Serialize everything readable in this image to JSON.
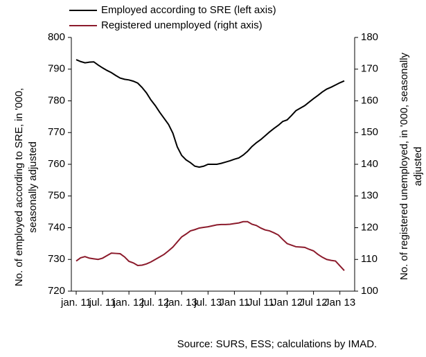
{
  "chart_data": {
    "type": "line",
    "categories": [
      "jan. 11",
      null,
      null,
      null,
      null,
      null,
      "jul. 11",
      null,
      null,
      null,
      null,
      null,
      "jan. 12",
      null,
      null,
      null,
      null,
      null,
      "jul. 12",
      null,
      null,
      null,
      null,
      null,
      "jan. 13",
      null,
      null,
      null,
      null,
      null,
      "jul. 13",
      null,
      null,
      null,
      null,
      null,
      "Jan 11",
      null,
      null,
      null,
      null,
      null,
      "Jul 11",
      null,
      null,
      null,
      null,
      null,
      "Jan 12",
      null,
      null,
      null,
      null,
      null,
      "Jul 12",
      null,
      null,
      null,
      null,
      null,
      "Jan 13",
      null
    ],
    "series": [
      {
        "name": "Employed according to SRE (left axis)",
        "color": "#000000",
        "axis": "y",
        "values": [
          793,
          792.4,
          792,
          792.2,
          792.3,
          791.3,
          790.4,
          789.6,
          788.9,
          788,
          787.2,
          786.8,
          786.6,
          786.2,
          785.6,
          784.2,
          782.5,
          780.3,
          778.5,
          776.4,
          774.5,
          772.6,
          769.8,
          765.5,
          762.8,
          761.4,
          760.5,
          759.4,
          759.1,
          759.4,
          760,
          760,
          760,
          760.3,
          760.7,
          761.1,
          761.6,
          762,
          762.9,
          764.1,
          765.6,
          766.8,
          767.8,
          769,
          770.2,
          771.3,
          772.3,
          773.5,
          774,
          775.4,
          776.9,
          777.7,
          778.5,
          779.6,
          780.7,
          781.7,
          782.8,
          783.7,
          784.3,
          785,
          785.7,
          786.3
        ]
      },
      {
        "name": "Registered unemployed (right axis)",
        "color": "#8b1a2b",
        "axis": "y2",
        "values": [
          109.5,
          110.5,
          110.9,
          110.4,
          110.2,
          110,
          110.4,
          111.2,
          112,
          111.9,
          111.8,
          110.8,
          109.4,
          108.9,
          108.1,
          108.2,
          108.6,
          109.2,
          110,
          110.8,
          111.6,
          112.7,
          113.9,
          115.5,
          117.1,
          118,
          119,
          119.4,
          119.9,
          120.1,
          120.3,
          120.6,
          120.9,
          121,
          121,
          121.1,
          121.3,
          121.5,
          121.9,
          121.9,
          121.1,
          120.7,
          119.9,
          119.3,
          119,
          118.4,
          117.7,
          116.3,
          115,
          114.5,
          114,
          113.9,
          113.8,
          113.2,
          112.7,
          111.6,
          110.7,
          110,
          109.7,
          109.5,
          108,
          106.5
        ]
      }
    ],
    "ylabel": [
      "No. of employed according to SRE, in '000,",
      "seasonally adjusted"
    ],
    "y2label": [
      "No. of registered unemployed, in '000, seasonally",
      "adjusted"
    ],
    "ylim": [
      720,
      800
    ],
    "yticks": [
      720,
      730,
      740,
      750,
      760,
      770,
      780,
      790,
      800
    ],
    "y2lim": [
      100,
      180
    ],
    "y2ticks": [
      100,
      110,
      120,
      130,
      140,
      150,
      160,
      170,
      180
    ],
    "source": "Source: SURS, ESS; calculations by IMAD."
  }
}
